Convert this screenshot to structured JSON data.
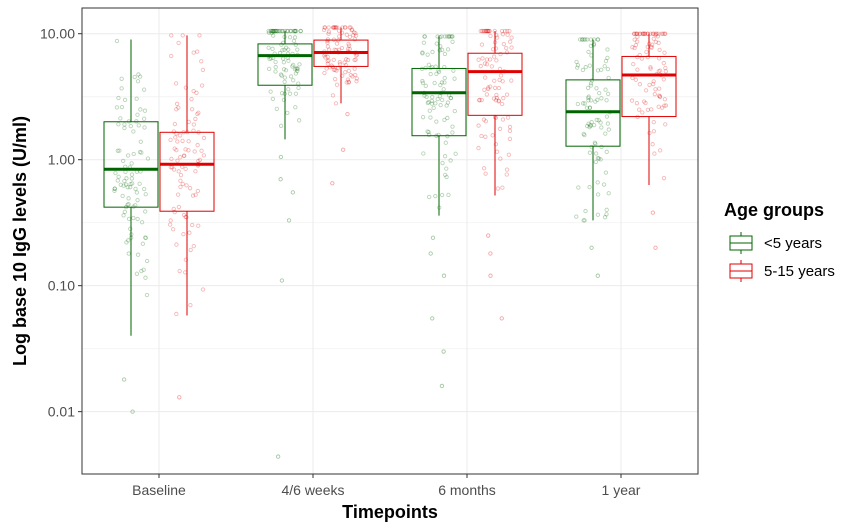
{
  "chart_data": {
    "type": "boxplot",
    "title": "",
    "xlabel": "Timepoints",
    "ylabel": "Log base 10 IgG levels (U/ml)",
    "y_scale": "log10",
    "ylim": [
      0.0032,
      16
    ],
    "y_ticks": [
      0.01,
      0.1,
      1,
      10
    ],
    "y_tick_labels": [
      "0.01",
      "0.10",
      "1.00",
      "10.00"
    ],
    "categories": [
      "Baseline",
      "4/6 weeks",
      "6 months",
      "1 year"
    ],
    "grid": true,
    "legend": {
      "title": "Age groups",
      "position": "right"
    },
    "series": [
      {
        "name": "<5 years",
        "color": "#006400",
        "boxes": [
          {
            "min": 0.04,
            "q1": 0.42,
            "median": 0.84,
            "q3": 2.0,
            "max": 9.0,
            "outliers": [
              0.018,
              0.01
            ]
          },
          {
            "min": 1.45,
            "q1": 3.9,
            "median": 6.7,
            "q3": 8.3,
            "max": 10.5,
            "outliers": [
              1.05,
              0.7,
              0.55,
              0.33,
              0.11,
              0.0044
            ]
          },
          {
            "min": 0.36,
            "q1": 1.55,
            "median": 3.4,
            "q3": 5.3,
            "max": 9.5,
            "outliers": [
              0.24,
              0.18,
              0.12,
              0.055,
              0.03,
              0.016
            ]
          },
          {
            "min": 0.33,
            "q1": 1.28,
            "median": 2.4,
            "q3": 4.3,
            "max": 9.0,
            "outliers": [
              0.2,
              0.12
            ]
          }
        ]
      },
      {
        "name": "5-15 years",
        "color": "#E00000",
        "boxes": [
          {
            "min": 0.058,
            "q1": 0.39,
            "median": 0.92,
            "q3": 1.65,
            "max": 9.7,
            "outliers": [
              0.013
            ]
          },
          {
            "min": 2.8,
            "q1": 5.5,
            "median": 7.1,
            "q3": 8.9,
            "max": 11.2,
            "outliers": [
              2.3,
              1.2,
              0.65
            ]
          },
          {
            "min": 0.52,
            "q1": 2.25,
            "median": 5.0,
            "q3": 7.0,
            "max": 10.5,
            "outliers": [
              0.25,
              0.18,
              0.12,
              0.055
            ]
          },
          {
            "min": 0.63,
            "q1": 2.2,
            "median": 4.7,
            "q3": 6.6,
            "max": 10.0,
            "outliers": [
              0.38,
              0.2
            ]
          }
        ]
      }
    ]
  }
}
